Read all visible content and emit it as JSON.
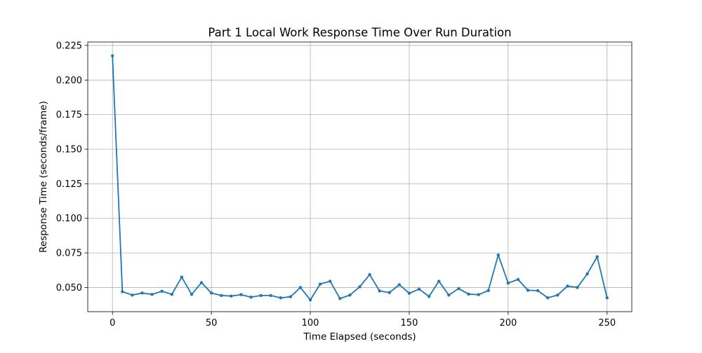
{
  "chart_data": {
    "type": "line",
    "title": "Part 1 Local Work Response Time Over Run Duration",
    "xlabel": "Time Elapsed (seconds)",
    "ylabel": "Response Time (seconds/frame)",
    "xlim": [
      -12.5,
      262.5
    ],
    "ylim": [
      0.0325,
      0.2275
    ],
    "xticks": [
      0,
      50,
      100,
      150,
      200,
      250
    ],
    "yticks": [
      0.05,
      0.075,
      0.1,
      0.125,
      0.15,
      0.175,
      0.2,
      0.225
    ],
    "xtick_labels": [
      "0",
      "50",
      "100",
      "150",
      "200",
      "250"
    ],
    "ytick_labels": [
      "0.050",
      "0.075",
      "0.100",
      "0.125",
      "0.150",
      "0.175",
      "0.200",
      "0.225"
    ],
    "grid": true,
    "legend": null,
    "line_color": "#1f77b4",
    "series": [
      {
        "x": [
          0,
          5,
          10,
          15,
          20,
          25,
          30,
          35,
          40,
          45,
          50,
          55,
          60,
          65,
          70,
          75,
          80,
          85,
          90,
          95,
          100,
          105,
          110,
          115,
          120,
          125,
          130,
          135,
          140,
          145,
          150,
          155,
          160,
          165,
          170,
          175,
          180,
          185,
          190,
          195,
          200,
          205,
          210,
          215,
          220,
          225,
          230,
          235,
          240,
          245,
          250
        ],
        "values": [
          0.2175,
          0.047,
          0.0445,
          0.046,
          0.045,
          0.0473,
          0.045,
          0.0575,
          0.045,
          0.0535,
          0.046,
          0.0442,
          0.0438,
          0.0448,
          0.043,
          0.0442,
          0.0442,
          0.0425,
          0.0433,
          0.05,
          0.041,
          0.0525,
          0.0545,
          0.042,
          0.0445,
          0.0505,
          0.0593,
          0.0475,
          0.0463,
          0.052,
          0.0458,
          0.0488,
          0.0435,
          0.0545,
          0.0445,
          0.0492,
          0.0452,
          0.0448,
          0.0478,
          0.0735,
          0.0532,
          0.0558,
          0.048,
          0.0477,
          0.0425,
          0.0445,
          0.051,
          0.05,
          0.0598,
          0.0722,
          0.0425
        ]
      }
    ]
  }
}
